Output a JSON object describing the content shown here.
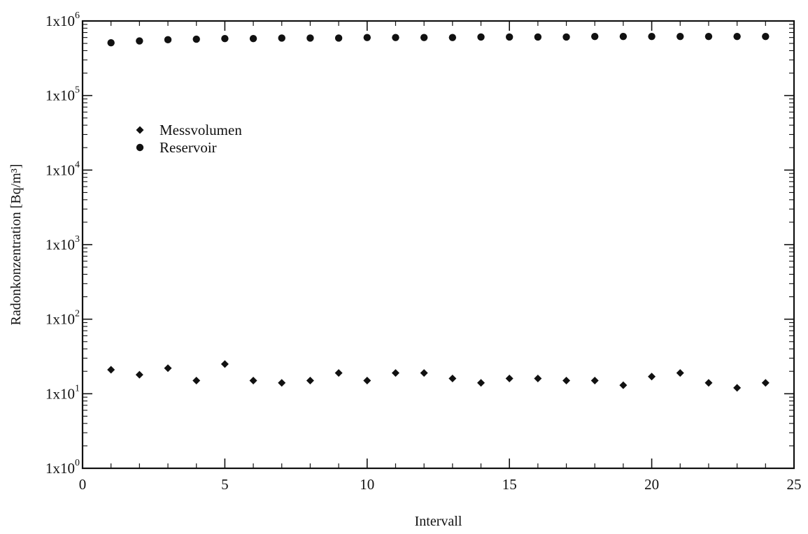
{
  "chart_data": {
    "type": "scatter",
    "title": "",
    "xlabel": "Intervall",
    "ylabel": "Radonkonzentration [Bq/m³]",
    "xlim": [
      0,
      25
    ],
    "ylim": [
      1,
      1000000
    ],
    "yscale": "log",
    "grid": false,
    "legend_placement": "upper-left",
    "x_ticks": [
      0,
      5,
      10,
      15,
      20,
      25
    ],
    "x_tick_labels": [
      "0",
      "5",
      "10",
      "15",
      "20",
      "25"
    ],
    "y_ticks": [
      1,
      10,
      100,
      1000,
      10000,
      100000,
      1000000
    ],
    "y_tick_labels": [
      {
        "base": "1x10",
        "exp": "0"
      },
      {
        "base": "1x10",
        "exp": "1"
      },
      {
        "base": "1x10",
        "exp": "2"
      },
      {
        "base": "1x10",
        "exp": "3"
      },
      {
        "base": "1x10",
        "exp": "4"
      },
      {
        "base": "1x10",
        "exp": "5"
      },
      {
        "base": "1x10",
        "exp": "6"
      }
    ],
    "series": [
      {
        "name": "Messvolumen",
        "marker": "diamond",
        "color": "#111111",
        "x": [
          1,
          2,
          3,
          4,
          5,
          6,
          7,
          8,
          9,
          10,
          11,
          12,
          13,
          14,
          15,
          16,
          17,
          18,
          19,
          20,
          21,
          22,
          23,
          24
        ],
        "y": [
          21,
          18,
          22,
          15,
          25,
          15,
          14,
          15,
          19,
          15,
          19,
          19,
          16,
          14,
          16,
          16,
          15,
          15,
          13,
          17,
          19,
          14,
          12,
          14
        ]
      },
      {
        "name": "Reservoir",
        "marker": "circle",
        "color": "#111111",
        "x": [
          1,
          2,
          3,
          4,
          5,
          6,
          7,
          8,
          9,
          10,
          11,
          12,
          13,
          14,
          15,
          16,
          17,
          18,
          19,
          20,
          21,
          22,
          23,
          24
        ],
        "y": [
          510000,
          540000,
          560000,
          570000,
          580000,
          580000,
          590000,
          590000,
          590000,
          600000,
          600000,
          600000,
          600000,
          610000,
          610000,
          610000,
          610000,
          620000,
          620000,
          620000,
          620000,
          620000,
          620000,
          620000
        ]
      }
    ]
  }
}
